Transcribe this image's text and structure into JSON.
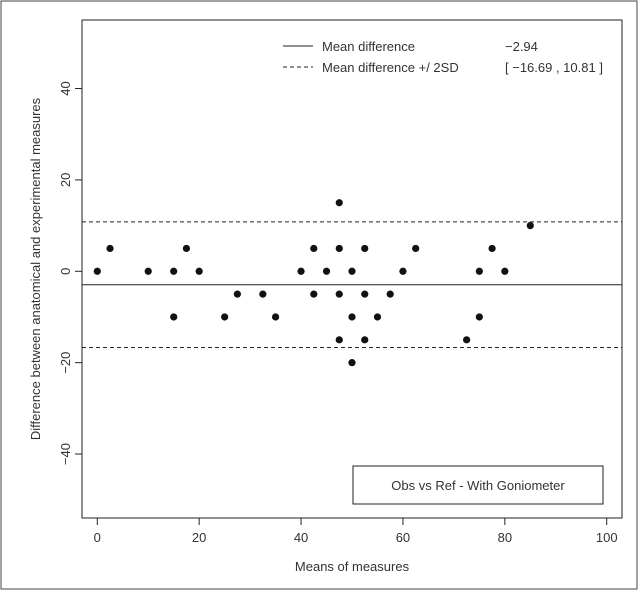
{
  "chart_data": {
    "type": "scatter",
    "xlabel": "Means of measures",
    "ylabel": "Difference between anatomical and experimental measures",
    "xlim": [
      -3,
      103
    ],
    "ylim": [
      -54,
      55
    ],
    "x_ticks": [
      0,
      20,
      40,
      60,
      80,
      100
    ],
    "y_ticks": [
      -40,
      -20,
      0,
      20,
      40
    ],
    "grid": false,
    "legend": {
      "position": "top-right",
      "mean_label": "Mean difference",
      "mean_value": "−2.94",
      "sd_label": "Mean difference +/ 2SD",
      "sd_value": "[ −16.69 , 10.81 ]"
    },
    "annotation": "Obs vs Ref - With Goniometer",
    "mean_difference": -2.94,
    "lower_limit": -16.69,
    "upper_limit": 10.81,
    "series": [
      {
        "points": [
          [
            0,
            0
          ],
          [
            2.5,
            5
          ],
          [
            10,
            0
          ],
          [
            15,
            0
          ],
          [
            15,
            -10
          ],
          [
            17.5,
            5
          ],
          [
            20,
            0
          ],
          [
            25,
            -10
          ],
          [
            27.5,
            -5
          ],
          [
            32.5,
            -5
          ],
          [
            35,
            -10
          ],
          [
            40,
            0
          ],
          [
            42.5,
            5
          ],
          [
            42.5,
            -5
          ],
          [
            45,
            0
          ],
          [
            47.5,
            15
          ],
          [
            47.5,
            5
          ],
          [
            47.5,
            -5
          ],
          [
            47.5,
            -15
          ],
          [
            50,
            0
          ],
          [
            50,
            -10
          ],
          [
            50,
            -20
          ],
          [
            52.5,
            5
          ],
          [
            52.5,
            -5
          ],
          [
            52.5,
            -15
          ],
          [
            55,
            -10
          ],
          [
            57.5,
            -5
          ],
          [
            60,
            0
          ],
          [
            62.5,
            5
          ],
          [
            72.5,
            -15
          ],
          [
            75,
            0
          ],
          [
            75,
            -10
          ],
          [
            77.5,
            5
          ],
          [
            80,
            0
          ],
          [
            85,
            10
          ]
        ]
      }
    ]
  }
}
